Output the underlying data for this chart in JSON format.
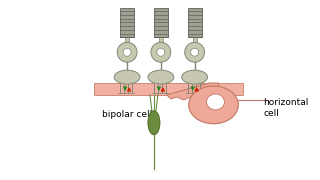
{
  "bg_color": "#ffffff",
  "pr_body_color": "#c8c8b0",
  "pr_outline": "#808878",
  "pr_seg_color": "#909090",
  "pr_seg_outline": "#606060",
  "bipolar_color": "#6b8c3e",
  "bipolar_outline": "#4a6a20",
  "horizontal_color": "#f0a898",
  "horizontal_outline": "#c07860",
  "red_color": "#cc2200",
  "green_color": "#228822",
  "label_bipolar": "bipolar cell",
  "label_horizontal": "horizontal\ncell",
  "label_fontsize": 6.5
}
